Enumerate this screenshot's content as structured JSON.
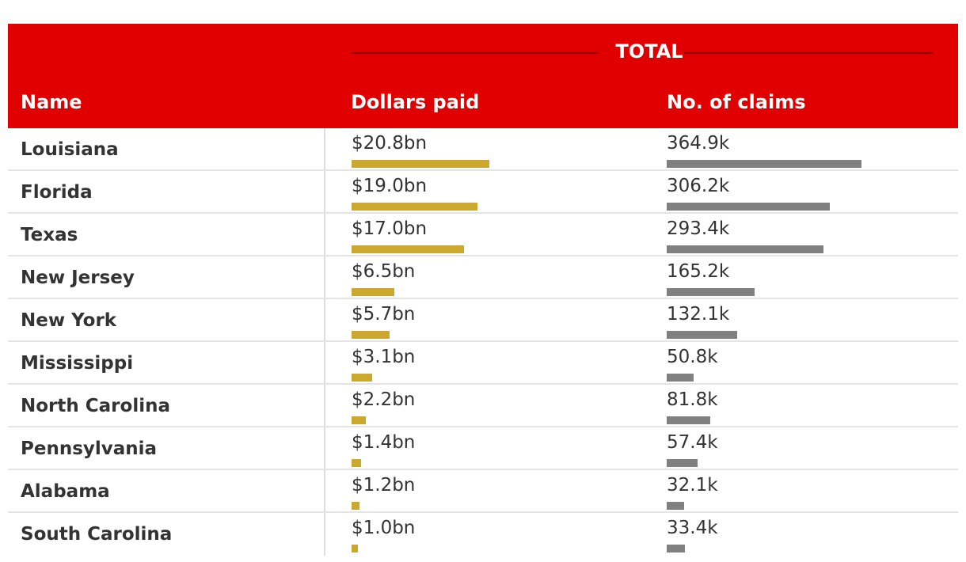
{
  "header": {
    "group_title": "TOTAL",
    "col_name": "Name",
    "col_dollars": "Dollars paid",
    "col_claims": "No. of claims"
  },
  "colors": {
    "header_bg": "#e00000",
    "dollars_bar": "#cca82e",
    "claims_bar": "#808080"
  },
  "chart_data": {
    "type": "table",
    "columns": [
      "Name",
      "Dollars paid",
      "No. of claims"
    ],
    "rows": [
      {
        "name": "Louisiana",
        "dollars_label": "$20.8bn",
        "dollars": 20.8,
        "claims_label": "364.9k",
        "claims": 364.9
      },
      {
        "name": "Florida",
        "dollars_label": "$19.0bn",
        "dollars": 19.0,
        "claims_label": "306.2k",
        "claims": 306.2
      },
      {
        "name": "Texas",
        "dollars_label": "$17.0bn",
        "dollars": 17.0,
        "claims_label": "293.4k",
        "claims": 293.4
      },
      {
        "name": "New Jersey",
        "dollars_label": "$6.5bn",
        "dollars": 6.5,
        "claims_label": "165.2k",
        "claims": 165.2
      },
      {
        "name": "New York",
        "dollars_label": "$5.7bn",
        "dollars": 5.7,
        "claims_label": "132.1k",
        "claims": 132.1
      },
      {
        "name": "Mississippi",
        "dollars_label": "$3.1bn",
        "dollars": 3.1,
        "claims_label": "50.8k",
        "claims": 50.8
      },
      {
        "name": "North Carolina",
        "dollars_label": "$2.2bn",
        "dollars": 2.2,
        "claims_label": "81.8k",
        "claims": 81.8
      },
      {
        "name": "Pennsylvania",
        "dollars_label": "$1.4bn",
        "dollars": 1.4,
        "claims_label": "57.4k",
        "claims": 57.4
      },
      {
        "name": "Alabama",
        "dollars_label": "$1.2bn",
        "dollars": 1.2,
        "claims_label": "32.1k",
        "claims": 32.1
      },
      {
        "name": "South Carolina",
        "dollars_label": "$1.0bn",
        "dollars": 1.0,
        "claims_label": "33.4k",
        "claims": 33.4
      }
    ]
  }
}
